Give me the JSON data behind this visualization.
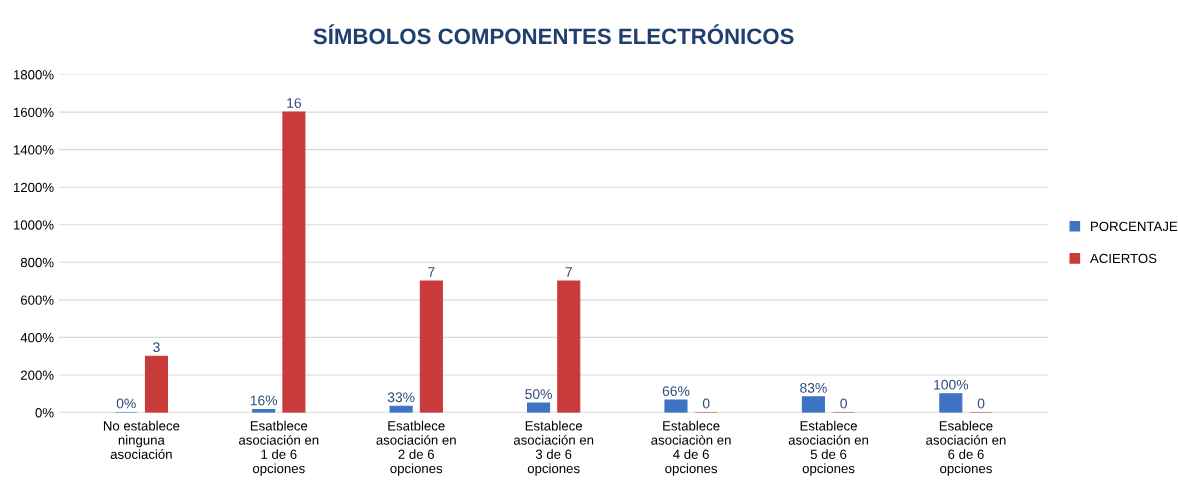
{
  "chart_data": {
    "type": "bar",
    "title": "SÍMBOLOS COMPONENTES ELECTRÓNICOS",
    "categories": [
      "No establece ninguna asociación",
      "Esatblece asociación en 1 de 6 opciones",
      "Esatblece asociación en 2 de 6 opciones",
      "Establece asociación en 3 de 6 opciones",
      "Establece asociaciòn en 4 de 6 opciones",
      "Establece asociación en 5 de 6 opciones",
      "Esablece asociación en 6 de 6 opciones"
    ],
    "series": [
      {
        "name": "PORCENTAJE",
        "color": "#3f73c4",
        "values": [
          0,
          0.16,
          0.33,
          0.5,
          0.66,
          0.83,
          1
        ],
        "value_labels": [
          "0%",
          "16%",
          "33%",
          "50%",
          "66%",
          "83%",
          "100%"
        ]
      },
      {
        "name": "ACIERTOS",
        "color": "#c93a3a",
        "values": [
          3,
          16,
          7,
          7,
          0,
          0,
          0
        ],
        "value_labels": [
          "3",
          "16",
          "7",
          "7",
          "0",
          "0",
          "0"
        ]
      }
    ],
    "ylim": [
      0,
      18
    ],
    "yticks": [
      {
        "value": 0,
        "label": "0%"
      },
      {
        "value": 2,
        "label": "200%"
      },
      {
        "value": 4,
        "label": "400%"
      },
      {
        "value": 6,
        "label": "600%"
      },
      {
        "value": 8,
        "label": "800%"
      },
      {
        "value": 10,
        "label": "1000%"
      },
      {
        "value": 12,
        "label": "1200%"
      },
      {
        "value": 14,
        "label": "1400%"
      },
      {
        "value": 16,
        "label": "1600%"
      },
      {
        "value": 18,
        "label": "1800%"
      }
    ],
    "grid": "y",
    "legend": "right"
  }
}
